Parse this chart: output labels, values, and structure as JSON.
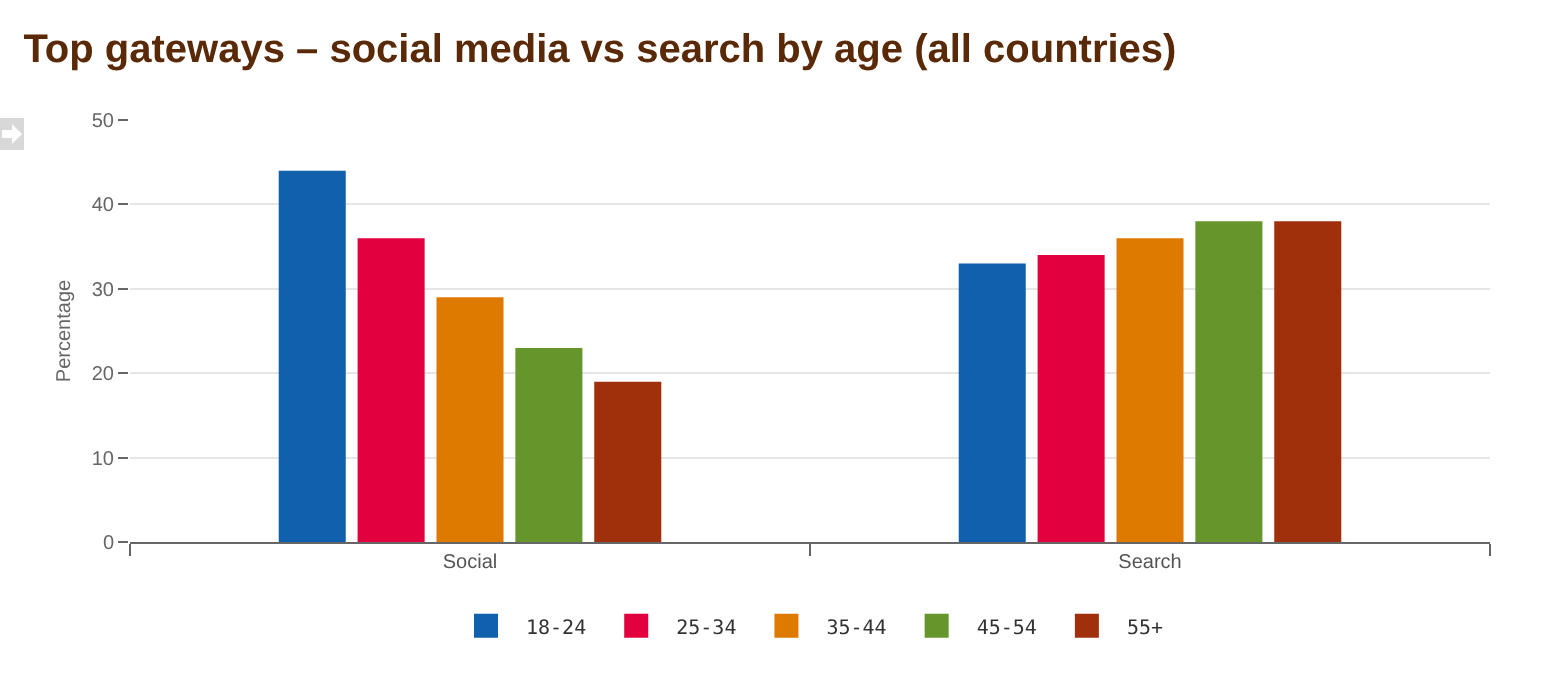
{
  "chart_data": {
    "type": "bar",
    "title": "Top gateways – social media vs search by age (all countries)",
    "ylabel": "Percentage",
    "categories": [
      "Social",
      "Search"
    ],
    "series": [
      {
        "name": "18-24",
        "color": "#1060ae",
        "values": [
          44,
          33
        ]
      },
      {
        "name": "25-34",
        "color": "#e2003e",
        "values": [
          36,
          34
        ]
      },
      {
        "name": "35-44",
        "color": "#de7a00",
        "values": [
          29,
          36
        ]
      },
      {
        "name": "45-54",
        "color": "#66952c",
        "values": [
          23,
          38
        ]
      },
      {
        "name": "55+",
        "color": "#a0300c",
        "values": [
          19,
          38
        ]
      }
    ],
    "ylim": [
      0,
      50
    ],
    "yticks": [
      0,
      10,
      20,
      30,
      40,
      50
    ],
    "grid": "y",
    "legend": "bottom"
  }
}
